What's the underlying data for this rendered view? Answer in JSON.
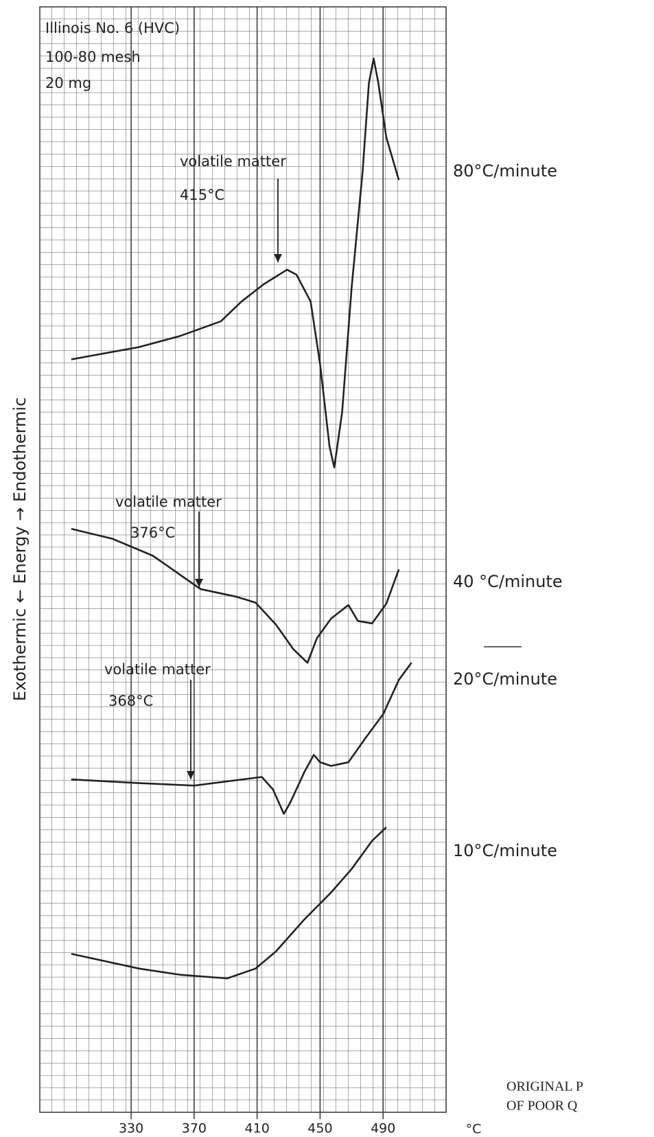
{
  "chart_data": {
    "type": "line",
    "notes": [
      "Illinois No. 6 (HVC)",
      "100-80 mesh",
      "20 mg"
    ],
    "ylabel": "Exothermic ← Energy → Endothermic",
    "xlabel": "°C",
    "footer": [
      "ORIGINAL P",
      "OF POOR Q"
    ],
    "xlim": [
      272,
      530
    ],
    "xticks": [
      330,
      370,
      410,
      450,
      490
    ],
    "ylim": [
      0,
      90
    ],
    "grid": true,
    "series": [
      {
        "name": "80°C/minute",
        "color": "#222",
        "x": [
          292,
          335,
          361,
          387,
          400,
          414,
          429,
          435,
          444,
          450,
          456,
          459,
          464,
          470,
          477,
          481,
          484,
          487,
          492,
          500
        ],
        "values": [
          61.3,
          62.3,
          63.2,
          64.4,
          66,
          67.4,
          68.6,
          68.2,
          66,
          60.9,
          54.2,
          52.5,
          57,
          67.1,
          76.6,
          83.8,
          85.8,
          83.8,
          79.4,
          75.9
        ]
      },
      {
        "name": "40 °C/minute",
        "color": "#222",
        "x": [
          292,
          318,
          344,
          374,
          396,
          409,
          422,
          433,
          442,
          448,
          457,
          468,
          474,
          483,
          492,
          500
        ],
        "values": [
          47.5,
          46.7,
          45.3,
          42.6,
          42,
          41.5,
          39.7,
          37.7,
          36.6,
          38.6,
          40.2,
          41.3,
          40,
          39.8,
          41.4,
          44.2
        ]
      },
      {
        "name": "20°C/minute",
        "color": "#222",
        "x": [
          292,
          335,
          370,
          413,
          420,
          427,
          431,
          440,
          446,
          450,
          457,
          468,
          479,
          490,
          500,
          508
        ],
        "values": [
          27.1,
          26.8,
          26.6,
          27.3,
          26.3,
          24.3,
          25.2,
          27.7,
          29.1,
          28.5,
          28.2,
          28.5,
          30.5,
          32.4,
          35.2,
          36.6
        ]
      },
      {
        "name": "10°C/minute",
        "color": "#222",
        "x": [
          292,
          335,
          361,
          391,
          409,
          422,
          440,
          457,
          470,
          483,
          492
        ],
        "values": [
          12.9,
          11.7,
          11.2,
          10.9,
          11.7,
          13.1,
          15.7,
          17.9,
          19.8,
          22.1,
          23.2
        ]
      }
    ],
    "annotations": [
      {
        "text": "volatile matter",
        "label": "415°C"
      },
      {
        "text": "volatile matter",
        "label": "376°C"
      },
      {
        "text": "volatile matter",
        "label": "368°C"
      }
    ]
  }
}
